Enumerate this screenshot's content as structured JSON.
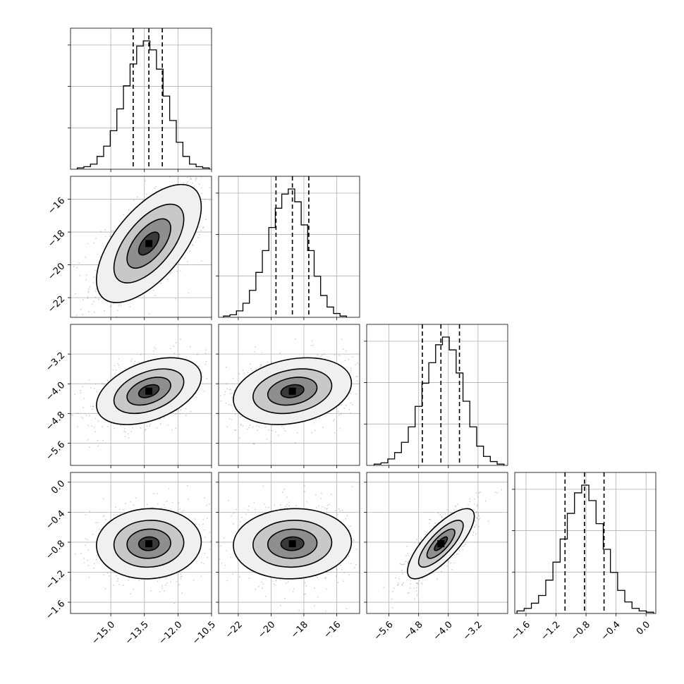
{
  "chart_data": {
    "type": "corner",
    "parameters": [
      {
        "median": -13.3,
        "q16": -14.0,
        "q84": -12.7,
        "range": [
          -16.8,
          -10.5
        ],
        "ticks": [
          -15.0,
          -13.5,
          -12.0,
          -10.5
        ],
        "tick_labels": [
          "−15.0",
          "−13.5",
          "−12.0",
          "−10.5"
        ],
        "hist": [
          1,
          2,
          4,
          10,
          18,
          30,
          47,
          65,
          82,
          96,
          100,
          93,
          78,
          57,
          38,
          21,
          10,
          4,
          2,
          1
        ],
        "hist_range": [
          -16.5,
          -10.6
        ]
      },
      {
        "median": -18.7,
        "q16": -19.7,
        "q84": -17.7,
        "range": [
          -23.2,
          -14.6
        ],
        "ticks": [
          -22,
          -20,
          -18,
          -16
        ],
        "tick_labels": [
          "−22",
          "−20",
          "−18",
          "−16"
        ],
        "hist": [
          1,
          2,
          5,
          11,
          21,
          35,
          52,
          70,
          85,
          96,
          100,
          90,
          72,
          52,
          32,
          17,
          8,
          3,
          1
        ],
        "hist_range": [
          -22.9,
          -15.4
        ]
      },
      {
        "median": -4.2,
        "q16": -4.7,
        "q84": -3.7,
        "range": [
          -6.2,
          -2.4
        ],
        "ticks": [
          -5.6,
          -4.8,
          -4.0,
          -3.2
        ],
        "tick_labels": [
          "−5.6",
          "−4.8",
          "−4.0",
          "−3.2"
        ],
        "hist": [
          1,
          2,
          5,
          10,
          18,
          30,
          46,
          64,
          80,
          94,
          100,
          90,
          72,
          50,
          30,
          15,
          7,
          3,
          1
        ],
        "hist_range": [
          -6.0,
          -2.5
        ]
      },
      {
        "median": -0.82,
        "q16": -1.08,
        "q84": -0.56,
        "range": [
          -1.75,
          0.13
        ],
        "ticks": [
          -1.6,
          -1.2,
          -0.8,
          -0.4,
          0.0
        ],
        "tick_labels": [
          "−1.6",
          "−1.2",
          "−0.8",
          "−0.4",
          "0.0"
        ],
        "hist": [
          2,
          4,
          8,
          14,
          26,
          40,
          58,
          78,
          94,
          100,
          88,
          70,
          50,
          32,
          18,
          9,
          4,
          2,
          1
        ],
        "hist_range": [
          -1.72,
          0.1
        ]
      }
    ],
    "sigma": [
      1.3,
      2.0,
      0.5,
      0.26
    ],
    "correlations": [
      [
        1,
        0.62,
        0.42,
        0.05
      ],
      [
        0.62,
        1,
        0.25,
        0.05
      ],
      [
        0.42,
        0.25,
        1,
        0.78
      ],
      [
        0.05,
        0.05,
        0.78,
        1
      ]
    ],
    "diagonal_y_ticks": 3,
    "grid": true,
    "quantiles": [
      0.16,
      0.5,
      0.84
    ]
  }
}
